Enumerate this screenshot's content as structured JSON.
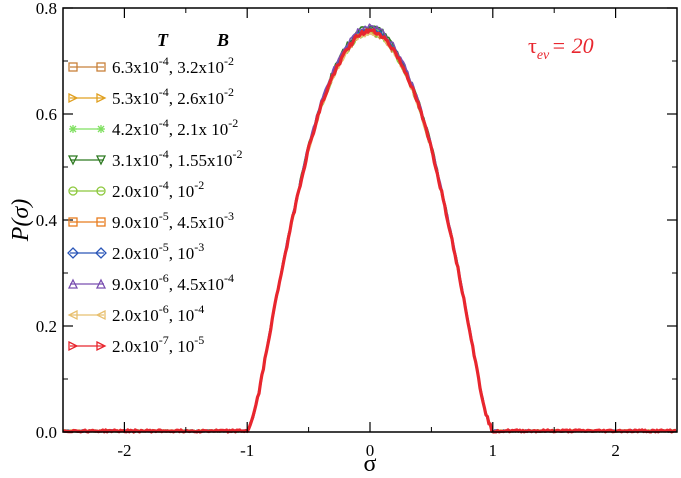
{
  "chart_data": {
    "type": "line",
    "xlabel": "σ",
    "ylabel": "P(σ)",
    "xlim": [
      -2.5,
      2.5
    ],
    "ylim": [
      0,
      0.8
    ],
    "x_ticks": [
      -2,
      -1,
      0,
      1,
      2
    ],
    "x_tick_labels": [
      "-2",
      "-1",
      "0",
      "1",
      "2"
    ],
    "y_ticks": [
      0,
      0.2,
      0.4,
      0.6,
      0.8
    ],
    "y_tick_labels": [
      "0.0",
      "0.2",
      "0.4",
      "0.6",
      "0.8"
    ],
    "grid": false,
    "legend_position": "top-left",
    "legend_headers": {
      "T": "T",
      "B": "B"
    },
    "annotation": {
      "base": "τ",
      "sub": "ev",
      "rest": "= 20"
    },
    "annotation_color": "#e8262e",
    "curve_shape": {
      "x": [
        -2.5,
        -1.0,
        -0.95,
        -0.9,
        -0.8,
        -0.7,
        -0.6,
        -0.5,
        -0.4,
        -0.3,
        -0.2,
        -0.1,
        0.0,
        0.1,
        0.2,
        0.3,
        0.4,
        0.5,
        0.6,
        0.7,
        0.8,
        0.9,
        0.95,
        1.0,
        2.5
      ],
      "y": [
        0.0,
        0.0,
        0.03,
        0.08,
        0.21,
        0.33,
        0.44,
        0.54,
        0.62,
        0.68,
        0.725,
        0.755,
        0.765,
        0.755,
        0.725,
        0.68,
        0.62,
        0.54,
        0.44,
        0.33,
        0.21,
        0.08,
        0.03,
        0.0,
        0.0
      ]
    },
    "series": [
      {
        "name_T_base": "6.3x10",
        "name_T_exp": "-4",
        "name_B_base": "3.2x10",
        "name_B_exp": "-2",
        "color": "#c8813a",
        "marker": "square"
      },
      {
        "name_T_base": "5.3x10",
        "name_T_exp": "-4",
        "name_B_base": "2.6x10",
        "name_B_exp": "-2",
        "color": "#e0a020",
        "marker": "triangle-right"
      },
      {
        "name_T_base": "4.2x10",
        "name_T_exp": "-4",
        "name_B_base": "2.1x 10",
        "name_B_exp": "-2",
        "color": "#7fe060",
        "marker": "star"
      },
      {
        "name_T_base": "3.1x10",
        "name_T_exp": "-4",
        "name_B_base": "1.55x10",
        "name_B_exp": "-2",
        "color": "#2f7a22",
        "marker": "triangle-down"
      },
      {
        "name_T_base": "2.0x10",
        "name_T_exp": "-4",
        "name_B_base": "10",
        "name_B_exp": "-2",
        "color": "#8cc83c",
        "marker": "circle"
      },
      {
        "name_T_base": "9.0x10",
        "name_T_exp": "-5",
        "name_B_base": "4.5x10",
        "name_B_exp": "-3",
        "color": "#e87c1e",
        "marker": "square"
      },
      {
        "name_T_base": "2.0x10",
        "name_T_exp": "-5",
        "name_B_base": "10",
        "name_B_exp": "-3",
        "color": "#2a56b8",
        "marker": "diamond"
      },
      {
        "name_T_base": "9.0x10",
        "name_T_exp": "-6",
        "name_B_base": "4.5x10",
        "name_B_exp": "-4",
        "color": "#7a4fb0",
        "marker": "triangle-up"
      },
      {
        "name_T_base": "2.0x10",
        "name_T_exp": "-6",
        "name_B_base": "10",
        "name_B_exp": "-4",
        "color": "#e8c070",
        "marker": "triangle-left"
      },
      {
        "name_T_base": "2.0x10",
        "name_T_exp": "-7",
        "name_B_base": "10",
        "name_B_exp": "-5",
        "color": "#e8262e",
        "marker": "triangle-right"
      }
    ]
  }
}
